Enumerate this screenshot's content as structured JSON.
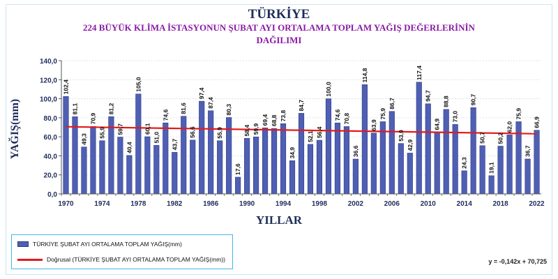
{
  "header": {
    "title": "TÜRKİYE",
    "subtitle_line1": "224 BÜYÜK KLİMA İSTASYONUN ŞUBAT  AYI  ORTALAMA TOPLAM  YAĞIŞ DEĞERLERİNİN",
    "subtitle_line2": "DAĞILIMI"
  },
  "legend": {
    "bars_label": "TÜRKİYE ŞUBAT AYI ORTALAMA TOPLAM YAĞIŞ(mm)",
    "trend_label": "Doğrusal (TÜRKİYE ŞUBAT AYI ORTALAMA TOPLAM YAĞIŞ(mm))",
    "equation": "y = -0,142x + 70,725"
  },
  "colors": {
    "bar": "#4f5fb3",
    "bar_stroke": "#2c3a86",
    "trend": "#e31a1c",
    "axis_text": "#1f2d5a"
  },
  "chart_data": {
    "type": "bar",
    "title": "TÜRKİYE",
    "xlabel": "YILLAR",
    "ylabel": "YAĞIŞ(mm)",
    "ylim": [
      0,
      140
    ],
    "yticks": [
      "0,0",
      "20,0",
      "40,0",
      "60,0",
      "80,0",
      "100,0",
      "120,0",
      "140,0"
    ],
    "grid": true,
    "legend_position": "bottom-left",
    "xtick_labels": [
      "1970",
      "1974",
      "1978",
      "1982",
      "1986",
      "1990",
      "1994",
      "1998",
      "2002",
      "2006",
      "2010",
      "2014",
      "2018",
      "2022"
    ],
    "categories": [
      1970,
      1971,
      1972,
      1973,
      1974,
      1975,
      1976,
      1977,
      1978,
      1979,
      1980,
      1981,
      1982,
      1983,
      1984,
      1985,
      1986,
      1987,
      1988,
      1989,
      1990,
      1991,
      1992,
      1993,
      1994,
      1995,
      1996,
      1997,
      1998,
      1999,
      2000,
      2001,
      2002,
      2003,
      2004,
      2005,
      2006,
      2007,
      2008,
      2009,
      2010,
      2011,
      2012,
      2013,
      2014,
      2015,
      2016,
      2017,
      2018,
      2019,
      2020,
      2021,
      2022
    ],
    "values": [
      102.4,
      81.1,
      49.3,
      70.9,
      55.9,
      81.2,
      59.7,
      40.4,
      105.0,
      60.1,
      51.0,
      74.6,
      43.7,
      81.6,
      56.6,
      97.4,
      87.4,
      55.9,
      80.3,
      17.6,
      58.4,
      59.9,
      69.4,
      68.8,
      73.8,
      34.9,
      84.7,
      52.1,
      56.4,
      100.0,
      74.6,
      70.8,
      36.6,
      114.8,
      63.9,
      75.9,
      86.7,
      53.0,
      42.9,
      117.4,
      94.7,
      64.9,
      88.8,
      73.0,
      24.3,
      90.7,
      50.7,
      19.1,
      50.2,
      62.0,
      75.9,
      36.7,
      66.9
    ],
    "value_labels": [
      "102,4",
      "81,1",
      "49,3",
      "70,9",
      "55,9",
      "81,2",
      "59,7",
      "40,4",
      "105,0",
      "60,1",
      "51,0",
      "74,6",
      "43,7",
      "81,6",
      "56,6",
      "97,4",
      "87,4",
      "55,9",
      "80,3",
      "17,6",
      "58,4",
      "59,9",
      "69,4",
      "68,8",
      "73,8",
      "34,9",
      "84,7",
      "52,1",
      "56,4",
      "100,0",
      "74,6",
      "70,8",
      "36,6",
      "114,8",
      "63,9",
      "75,9",
      "86,7",
      "53,0",
      "42,9",
      "117,4",
      "94,7",
      "64,9",
      "88,8",
      "73,0",
      "24,3",
      "90,7",
      "50,7",
      "19,1",
      "50,2",
      "62,0",
      "75,9",
      "36,7",
      "66,9"
    ],
    "trendline": {
      "slope": -0.142,
      "intercept": 70.725
    }
  }
}
